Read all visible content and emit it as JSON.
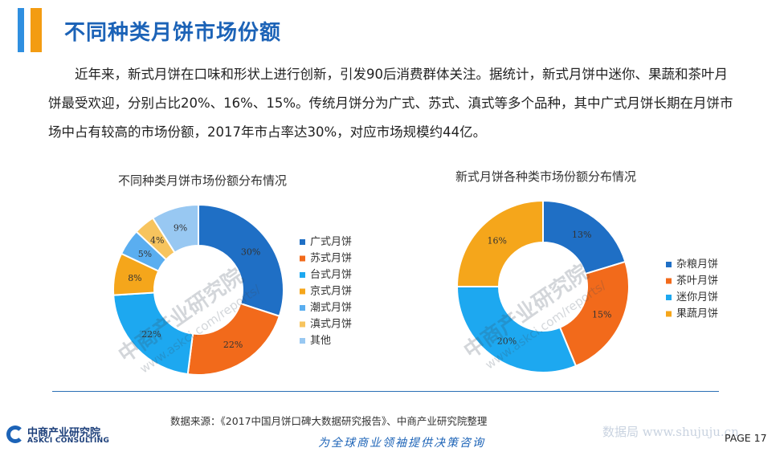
{
  "header": {
    "title": "不同种类月饼市场份额"
  },
  "paragraph": "近年来，新式月饼在口味和形状上进行创新，引发90后消费群体关注。据统计，新式月饼中迷你、果蔬和茶叶月饼最受欢迎，分别占比20%、16%、15%。传统月饼分为广式、苏式、滇式等多个品种，其中广式月饼长期在月饼市场中占有较高的市场份额，2017年市占率达30%，对应市场规模约44亿。",
  "chart_data": [
    {
      "type": "pie",
      "title": "不同种类月饼市场份额分布情况",
      "donut": true,
      "categories": [
        "广式月饼",
        "苏式月饼",
        "台式月饼",
        "京式月饼",
        "潮式月饼",
        "滇式月饼",
        "其他"
      ],
      "values": [
        30,
        22,
        22,
        8,
        5,
        4,
        9
      ],
      "data_labels": [
        "30%",
        "22%",
        "22%",
        "8%",
        "5%",
        "4%",
        "9%"
      ],
      "colors": [
        "#1f6fc5",
        "#f26a1b",
        "#1da8f0",
        "#f5a61b",
        "#5aaef0",
        "#f7c45e",
        "#98c8f2"
      ],
      "legend_position": "right"
    },
    {
      "type": "pie",
      "title": "新式月饼各种类市场份额分布情况",
      "donut": true,
      "categories": [
        "杂粮月饼",
        "茶叶月饼",
        "迷你月饼",
        "果蔬月饼"
      ],
      "values": [
        13,
        15,
        20,
        16
      ],
      "data_labels": [
        "13%",
        "15%",
        "20%",
        "16%"
      ],
      "colors": [
        "#1f6fc5",
        "#f26a1b",
        "#1da8f0",
        "#f5a61b"
      ],
      "legend_position": "right"
    }
  ],
  "watermark": {
    "cn": "中商产业研究院",
    "url": "www.askci.com/reports/"
  },
  "footer": {
    "source": "数据来源：《2017中国月饼口碑大数据研究报告》、中商产业研究院整理",
    "logo_cn": "中商产业研究院",
    "logo_en": "ASKCI CONSULTING",
    "slogan": "为全球商业领袖提供决策咨询",
    "brand": "数据局 www.shujuju.cn",
    "page": "PAGE 17"
  }
}
